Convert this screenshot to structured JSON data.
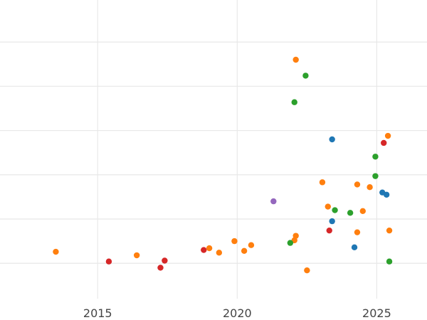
{
  "chart_data": {
    "type": "scatter",
    "title": "",
    "xlabel": "",
    "ylabel": "",
    "xlim": [
      2011.5,
      2026.8
    ],
    "ylim": [
      -0.8,
      5.95
    ],
    "grid": true,
    "x_ticks": [
      2015,
      2020,
      2025
    ],
    "x_tick_labels": [
      "2015",
      "2020",
      "2025"
    ],
    "y_grid_values": [
      0,
      1,
      2,
      3,
      4,
      5
    ],
    "colors": {
      "blue": "#1f77b4",
      "orange": "#ff7f0e",
      "green": "#2ca02c",
      "red": "#d62728",
      "purple": "#9467bd",
      "grid": "#e8e8e8",
      "tick_text": "#444444"
    },
    "series": [
      {
        "color": "#1f77b4",
        "points": [
          [
            2023.4,
            2.8
          ],
          [
            2025.2,
            1.6
          ],
          [
            2025.35,
            1.55
          ],
          [
            2023.4,
            0.95
          ],
          [
            2024.2,
            0.36
          ]
        ]
      },
      {
        "color": "#ff7f0e",
        "points": [
          [
            2013.5,
            0.26
          ],
          [
            2016.4,
            0.18
          ],
          [
            2019.0,
            0.34
          ],
          [
            2019.35,
            0.24
          ],
          [
            2019.9,
            0.5
          ],
          [
            2020.25,
            0.28
          ],
          [
            2020.5,
            0.41
          ],
          [
            2022.05,
            0.52
          ],
          [
            2022.1,
            0.62
          ],
          [
            2022.5,
            -0.16
          ],
          [
            2022.1,
            4.6
          ],
          [
            2023.05,
            1.83
          ],
          [
            2023.25,
            1.28
          ],
          [
            2024.3,
            1.78
          ],
          [
            2024.75,
            1.72
          ],
          [
            2024.5,
            1.18
          ],
          [
            2024.3,
            0.7
          ],
          [
            2025.4,
            2.88
          ],
          [
            2025.45,
            0.74
          ]
        ]
      },
      {
        "color": "#2ca02c",
        "points": [
          [
            2022.45,
            4.24
          ],
          [
            2022.05,
            3.64
          ],
          [
            2024.95,
            2.41
          ],
          [
            2024.95,
            1.97
          ],
          [
            2023.5,
            1.2
          ],
          [
            2024.05,
            1.14
          ],
          [
            2021.9,
            0.46
          ],
          [
            2025.45,
            0.04
          ]
        ]
      },
      {
        "color": "#d62728",
        "points": [
          [
            2015.4,
            0.04
          ],
          [
            2017.4,
            0.06
          ],
          [
            2017.25,
            -0.1
          ],
          [
            2018.8,
            0.3
          ],
          [
            2023.3,
            0.74
          ],
          [
            2025.25,
            2.72
          ]
        ]
      },
      {
        "color": "#9467bd",
        "points": [
          [
            2021.3,
            1.4
          ]
        ]
      }
    ]
  }
}
